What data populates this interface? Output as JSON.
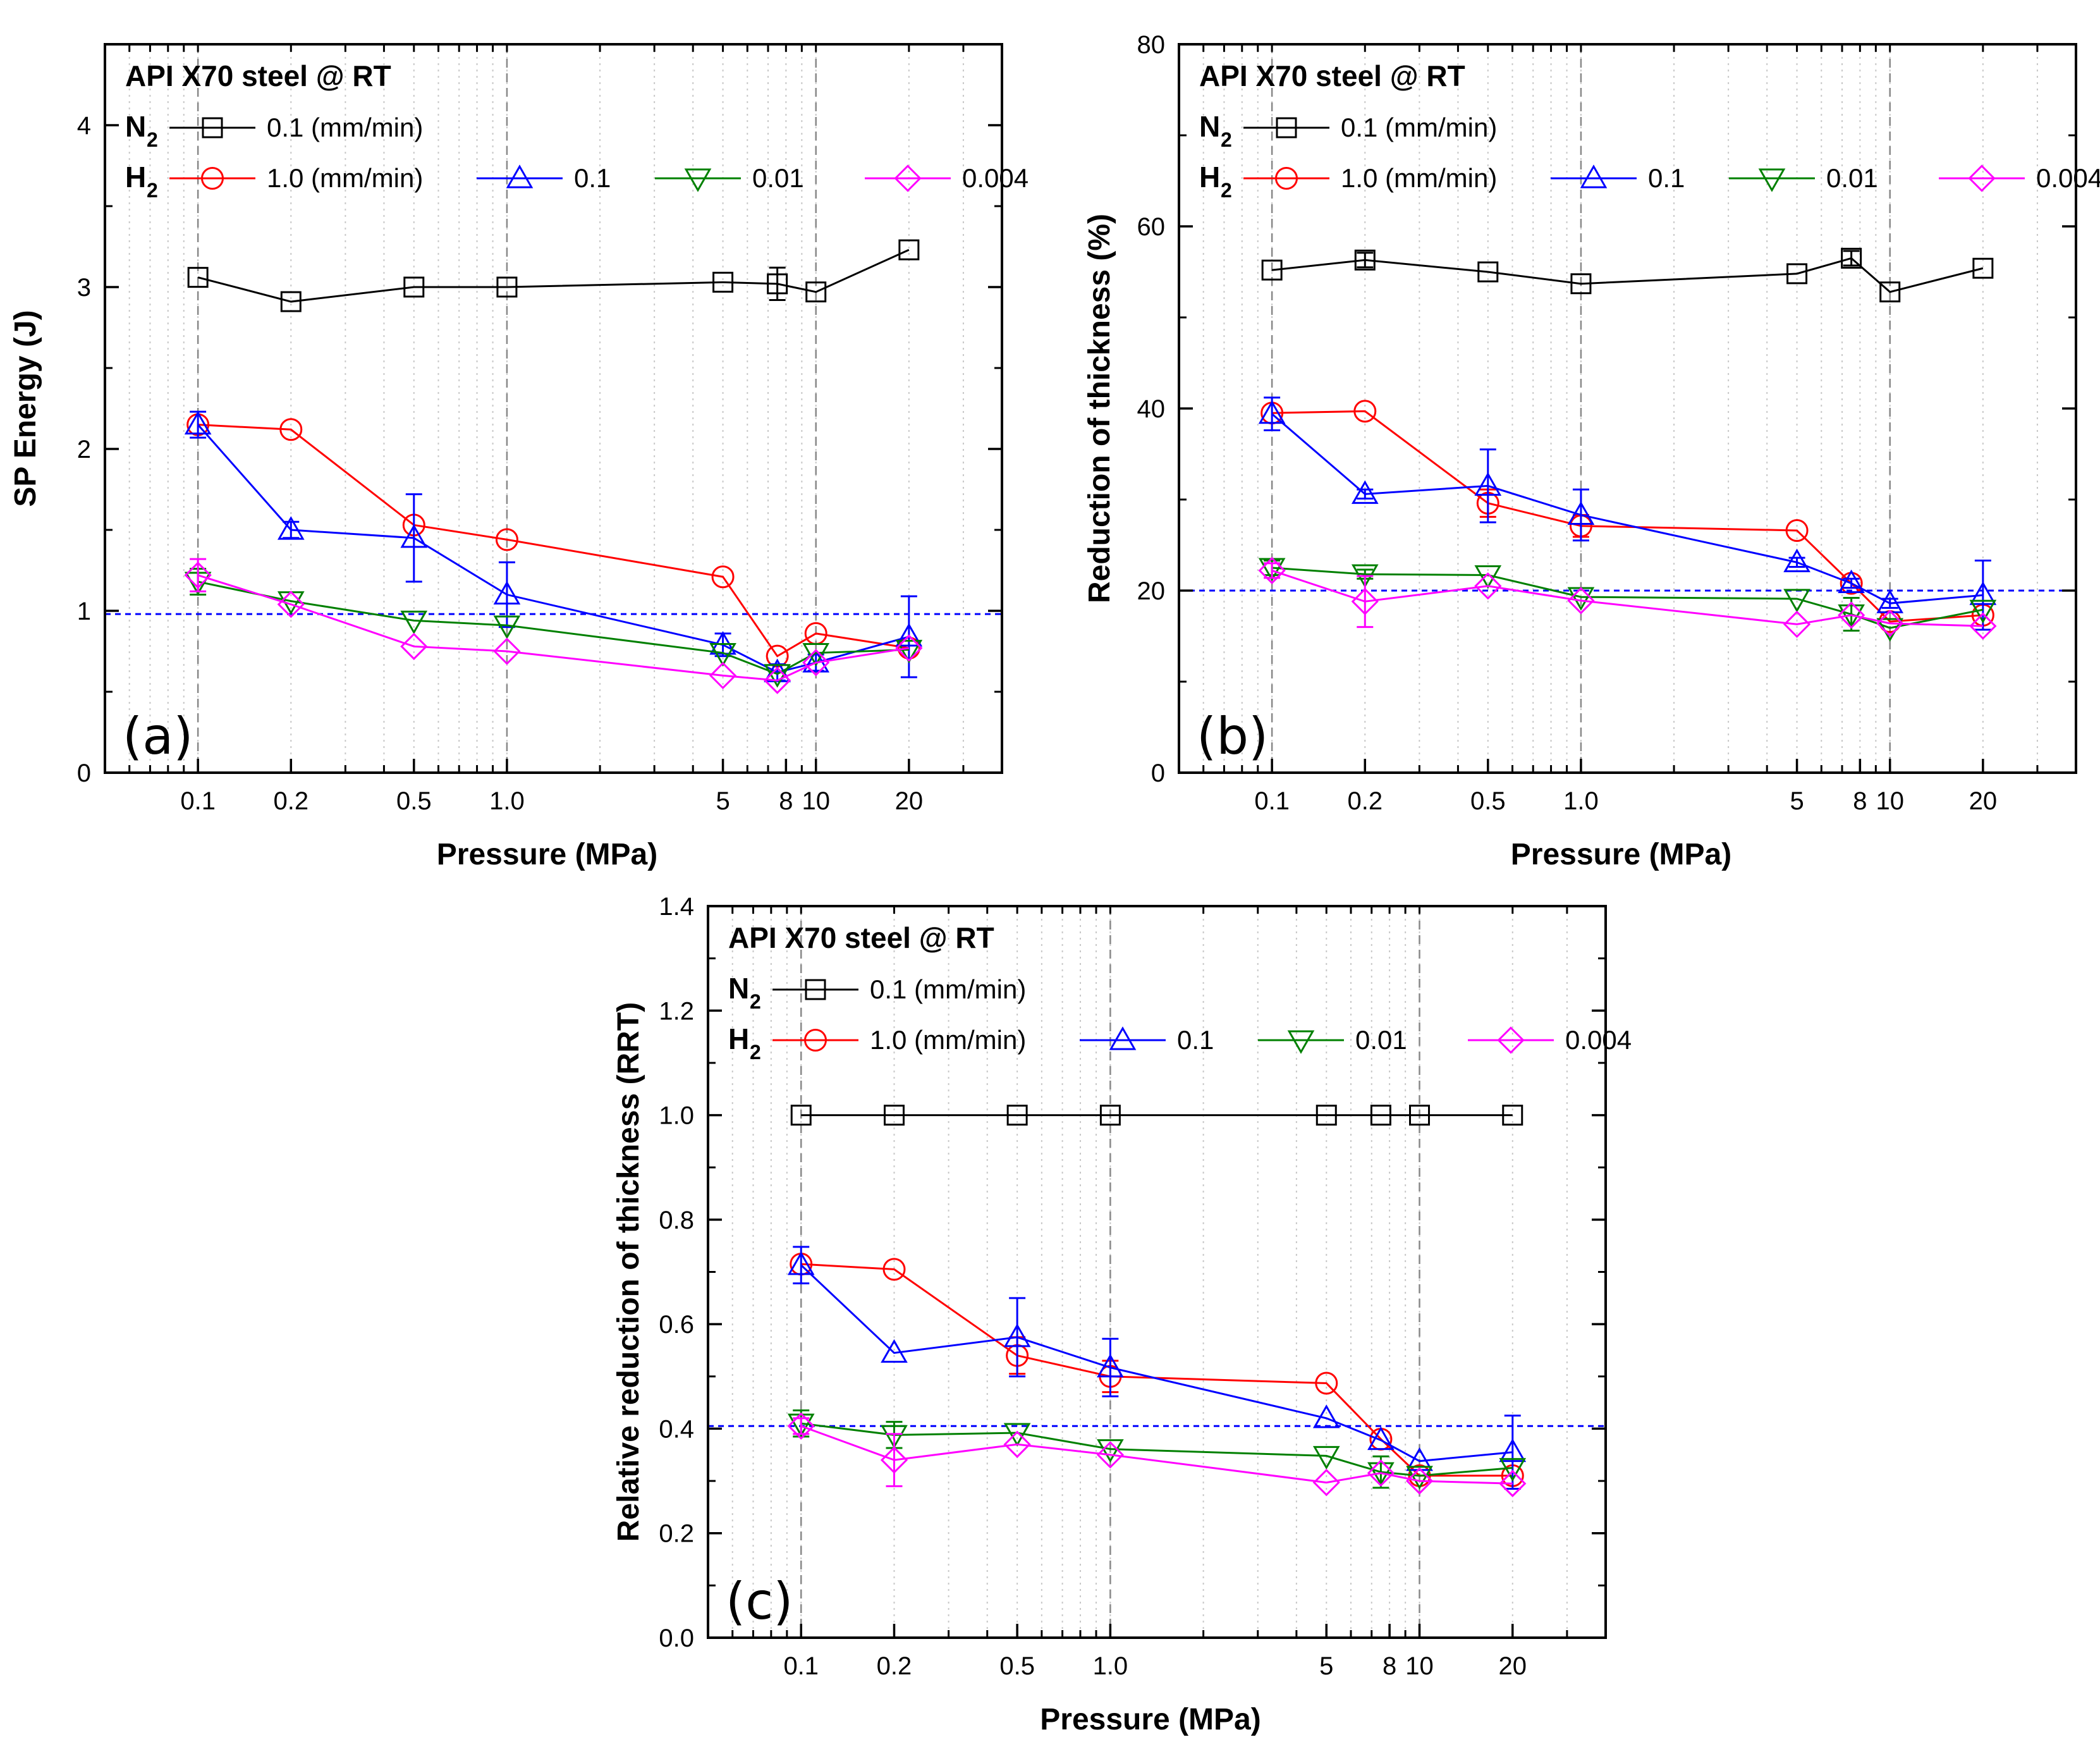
{
  "chart_data": [
    {
      "type": "line",
      "panel_label": "(a)",
      "title": "API X70 steel @ RT",
      "xlabel": "Pressure (MPa)",
      "ylabel": "SP Energy (J)",
      "xscale": "log",
      "xlim": [
        0.05,
        40
      ],
      "ylim": [
        0,
        4.5
      ],
      "yticks": [
        0,
        1,
        2,
        3,
        4
      ],
      "ytick_labels": [
        "0",
        "1",
        "2",
        "3",
        "4"
      ],
      "xticks": [
        0.1,
        0.2,
        0.5,
        1.0,
        5,
        8,
        10,
        20
      ],
      "xtick_labels": [
        "0.1",
        "0.2",
        "0.5",
        "1.0",
        "5",
        "8",
        "10",
        "20"
      ],
      "reference_line": 0.98,
      "legend": {
        "n2_label": "N",
        "n2_sub": "2",
        "n2_rate": "0.1 (mm/min)",
        "h2_label": "H",
        "h2_sub": "2",
        "h2_rates": [
          "1.0 (mm/min)",
          "0.1",
          "0.01",
          "0.004"
        ]
      },
      "series": [
        {
          "name": "N2 0.1 mm/min",
          "color": "#000000",
          "marker": "square",
          "x": [
            0.1,
            0.2,
            0.5,
            1.0,
            5,
            7.5,
            10,
            20
          ],
          "y": [
            3.06,
            2.91,
            3.0,
            3.0,
            3.03,
            3.02,
            2.97,
            3.23
          ],
          "err": [
            0,
            0,
            0,
            0,
            0,
            0.1,
            0,
            0
          ]
        },
        {
          "name": "H2 1.0 mm/min",
          "color": "#ff0000",
          "marker": "circle",
          "x": [
            0.1,
            0.2,
            0.5,
            1.0,
            5,
            7.5,
            10,
            20
          ],
          "y": [
            2.15,
            2.12,
            1.53,
            1.44,
            1.21,
            0.72,
            0.86,
            0.77
          ],
          "err": [
            0,
            0,
            0,
            0,
            0,
            0,
            0,
            0
          ]
        },
        {
          "name": "H2 0.1 mm/min",
          "color": "#0000ff",
          "marker": "triangle-up",
          "x": [
            0.1,
            0.2,
            0.5,
            1.0,
            5,
            7.5,
            10,
            20
          ],
          "y": [
            2.15,
            1.5,
            1.45,
            1.1,
            0.79,
            0.62,
            0.68,
            0.84
          ],
          "err": [
            0.08,
            0.05,
            0.27,
            0.2,
            0.07,
            0.05,
            0.05,
            0.25
          ]
        },
        {
          "name": "H2 0.01 mm/min",
          "color": "#008000",
          "marker": "triangle-down",
          "x": [
            0.1,
            0.2,
            0.5,
            1.0,
            5,
            7.5,
            10,
            20
          ],
          "y": [
            1.18,
            1.06,
            0.94,
            0.91,
            0.74,
            0.61,
            0.74,
            0.76
          ],
          "err": [
            0.08,
            0,
            0,
            0,
            0,
            0,
            0,
            0
          ]
        },
        {
          "name": "H2 0.004 mm/min",
          "color": "#ff00ff",
          "marker": "diamond",
          "x": [
            0.1,
            0.2,
            0.5,
            1.0,
            5,
            7.5,
            10,
            20
          ],
          "y": [
            1.22,
            1.04,
            0.78,
            0.75,
            0.6,
            0.57,
            0.68,
            0.77
          ],
          "err": [
            0.1,
            0,
            0,
            0,
            0,
            0,
            0,
            0
          ]
        }
      ]
    },
    {
      "type": "line",
      "panel_label": "(b)",
      "title": "API X70 steel @ RT",
      "xlabel": "Pressure (MPa)",
      "ylabel": "Reduction of thickness (%)",
      "xscale": "log",
      "xlim": [
        0.05,
        40
      ],
      "ylim": [
        0,
        80
      ],
      "yticks": [
        0,
        20,
        40,
        60,
        80
      ],
      "ytick_labels": [
        "0",
        "20",
        "40",
        "60",
        "80"
      ],
      "xticks": [
        0.1,
        0.2,
        0.5,
        1.0,
        5,
        8,
        10,
        20
      ],
      "xtick_labels": [
        "0.1",
        "0.2",
        "0.5",
        "1.0",
        "5",
        "8",
        "10",
        "20"
      ],
      "reference_line": 20,
      "legend": {
        "n2_label": "N",
        "n2_sub": "2",
        "n2_rate": "0.1 (mm/min)",
        "h2_label": "H",
        "h2_sub": "2",
        "h2_rates": [
          "1.0 (mm/min)",
          "0.1",
          "0.01",
          "0.004"
        ]
      },
      "series": [
        {
          "name": "N2 0.1 mm/min",
          "color": "#000000",
          "marker": "square",
          "x": [
            0.1,
            0.2,
            0.5,
            1.0,
            5,
            7.5,
            10,
            20
          ],
          "y": [
            55.2,
            56.3,
            55.0,
            53.7,
            54.8,
            56.5,
            52.8,
            55.4
          ],
          "err": [
            0,
            0.8,
            0,
            0,
            0,
            0.8,
            0,
            0
          ]
        },
        {
          "name": "H2 1.0 mm/min",
          "color": "#ff0000",
          "marker": "circle",
          "x": [
            0.1,
            0.2,
            0.5,
            1.0,
            5,
            7.5,
            10,
            20
          ],
          "y": [
            39.5,
            39.7,
            29.6,
            27.1,
            26.6,
            20.8,
            16.6,
            17.3
          ],
          "err": [
            0,
            0,
            1.5,
            1.2,
            0,
            0,
            0,
            0
          ]
        },
        {
          "name": "H2 0.1 mm/min",
          "color": "#0000ff",
          "marker": "triangle-up",
          "x": [
            0.1,
            0.2,
            0.5,
            1.0,
            5,
            7.5,
            10,
            20
          ],
          "y": [
            39.4,
            30.6,
            31.5,
            28.3,
            23.1,
            20.8,
            18.6,
            19.5
          ],
          "err": [
            1.8,
            0.5,
            4.0,
            2.8,
            0.5,
            0.5,
            0.5,
            3.8
          ]
        },
        {
          "name": "H2 0.01 mm/min",
          "color": "#008000",
          "marker": "triangle-down",
          "x": [
            0.1,
            0.2,
            0.5,
            1.0,
            5,
            7.5,
            10,
            20
          ],
          "y": [
            22.5,
            21.8,
            21.7,
            19.3,
            19.1,
            17.4,
            15.9,
            17.9
          ],
          "err": [
            0.8,
            0.5,
            0,
            0,
            0,
            1.8,
            0,
            0
          ]
        },
        {
          "name": "H2 0.004 mm/min",
          "color": "#ff00ff",
          "marker": "diamond",
          "x": [
            0.1,
            0.2,
            0.5,
            1.0,
            5,
            7.5,
            10,
            20
          ],
          "y": [
            22.2,
            18.8,
            20.5,
            18.9,
            16.3,
            17.3,
            16.4,
            16.1
          ],
          "err": [
            0.8,
            2.8,
            0,
            0,
            0,
            0,
            0,
            0
          ]
        }
      ]
    },
    {
      "type": "line",
      "panel_label": "(c)",
      "title": "API X70 steel @ RT",
      "xlabel": "Pressure (MPa)",
      "ylabel": "Relative reduction of thickness (RRT)",
      "xscale": "log",
      "xlim": [
        0.05,
        40
      ],
      "ylim": [
        0.0,
        1.4
      ],
      "yticks": [
        0.0,
        0.2,
        0.4,
        0.6,
        0.8,
        1.0,
        1.2,
        1.4
      ],
      "ytick_labels": [
        "0.0",
        "0.2",
        "0.4",
        "0.6",
        "0.8",
        "1.0",
        "1.2",
        "1.4"
      ],
      "xticks": [
        0.1,
        0.2,
        0.5,
        1.0,
        5,
        8,
        10,
        20
      ],
      "xtick_labels": [
        "0.1",
        "0.2",
        "0.5",
        "1.0",
        "5",
        "8",
        "10",
        "20"
      ],
      "reference_line": 0.405,
      "legend": {
        "n2_label": "N",
        "n2_sub": "2",
        "n2_rate": "0.1 (mm/min)",
        "h2_label": "H",
        "h2_sub": "2",
        "h2_rates": [
          "1.0 (mm/min)",
          "0.1",
          "0.01",
          "0.004"
        ]
      },
      "series": [
        {
          "name": "N2 0.1 mm/min",
          "color": "#000000",
          "marker": "square",
          "x": [
            0.1,
            0.2,
            0.5,
            1.0,
            5,
            7.5,
            10,
            20
          ],
          "y": [
            1.0,
            1.0,
            1.0,
            1.0,
            1.0,
            1.0,
            1.0,
            1.0
          ],
          "err": [
            0,
            0,
            0,
            0,
            0,
            0,
            0,
            0
          ]
        },
        {
          "name": "H2 1.0 mm/min",
          "color": "#ff0000",
          "marker": "circle",
          "x": [
            0.1,
            0.2,
            0.5,
            1.0,
            5,
            7.5,
            10,
            20
          ],
          "y": [
            0.715,
            0.705,
            0.54,
            0.5,
            0.487,
            0.38,
            0.31,
            0.31
          ],
          "err": [
            0,
            0,
            0.035,
            0.03,
            0,
            0,
            0,
            0
          ]
        },
        {
          "name": "H2 0.1 mm/min",
          "color": "#0000ff",
          "marker": "triangle-up",
          "x": [
            0.1,
            0.2,
            0.5,
            1.0,
            5,
            7.5,
            10,
            20
          ],
          "y": [
            0.713,
            0.545,
            0.575,
            0.517,
            0.42,
            0.378,
            0.338,
            0.355
          ],
          "err": [
            0.035,
            0,
            0.075,
            0.055,
            0,
            0,
            0,
            0.07
          ]
        },
        {
          "name": "H2 0.01 mm/min",
          "color": "#008000",
          "marker": "triangle-down",
          "x": [
            0.1,
            0.2,
            0.5,
            1.0,
            5,
            7.5,
            10,
            20
          ],
          "y": [
            0.41,
            0.388,
            0.392,
            0.361,
            0.348,
            0.317,
            0.31,
            0.325
          ],
          "err": [
            0.025,
            0.025,
            0,
            0,
            0,
            0.03,
            0,
            0
          ]
        },
        {
          "name": "H2 0.004 mm/min",
          "color": "#ff00ff",
          "marker": "diamond",
          "x": [
            0.1,
            0.2,
            0.5,
            1.0,
            5,
            7.5,
            10,
            20
          ],
          "y": [
            0.405,
            0.34,
            0.37,
            0.35,
            0.297,
            0.315,
            0.3,
            0.295
          ],
          "err": [
            0.015,
            0.05,
            0,
            0,
            0,
            0,
            0,
            0
          ]
        }
      ]
    }
  ]
}
